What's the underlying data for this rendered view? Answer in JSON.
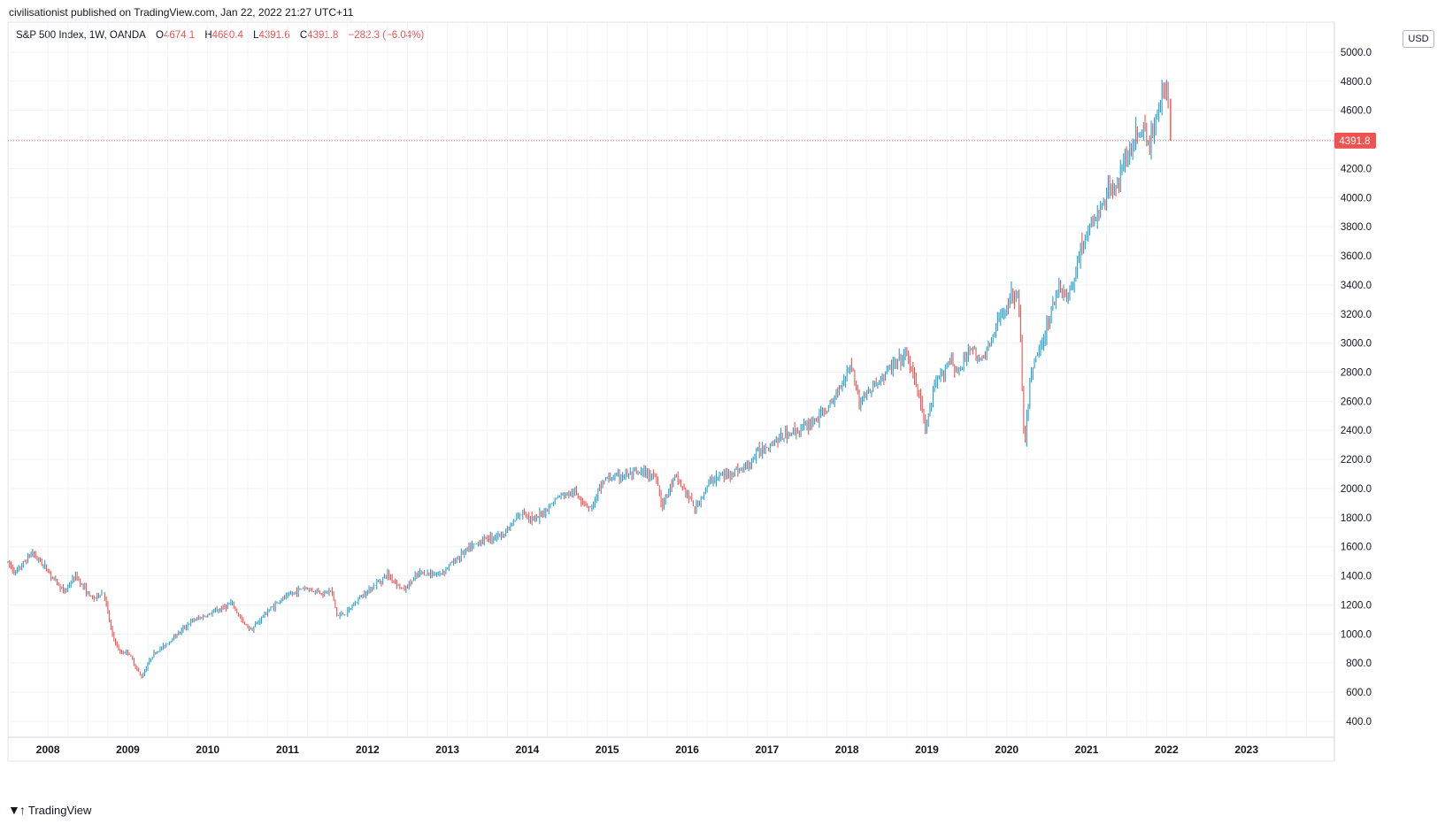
{
  "attribution": "civilisationist published on TradingView.com, Jan 22, 2022 21:27 UTC+11",
  "legend": {
    "symbol": "S&P 500 Index, 1W, OANDA",
    "open_label": "O",
    "open": "4674.1",
    "high_label": "H",
    "high": "4680.4",
    "low_label": "L",
    "low": "4391.6",
    "close_label": "C",
    "close": "4391.8",
    "change": "−282.3 (−6.04%)"
  },
  "currency": "USD",
  "last_price_label": "4391.8",
  "brand": "TradingView",
  "colors": {
    "up": "#26a69a",
    "down": "#ef5350",
    "line": "#26a0c8",
    "grid": "#f0f3fa",
    "price_line": "#ef5350"
  },
  "chart_data": {
    "type": "candlestick",
    "title": "S&P 500 Index, 1W, OANDA",
    "interval": "1W",
    "xlim": [
      2007.5,
      2024.1
    ],
    "ylim": [
      290,
      5170
    ],
    "y_ticks": [
      "400.0",
      "600.0",
      "800.0",
      "1000.0",
      "1200.0",
      "1400.0",
      "1600.0",
      "1800.0",
      "2000.0",
      "2200.0",
      "2400.0",
      "2600.0",
      "2800.0",
      "3000.0",
      "3200.0",
      "3400.0",
      "3600.0",
      "3800.0",
      "4000.0",
      "4200.0",
      "4600.0",
      "4800.0",
      "5000.0"
    ],
    "x_ticks": [
      "2008",
      "2009",
      "2010",
      "2011",
      "2012",
      "2013",
      "2014",
      "2015",
      "2016",
      "2017",
      "2018",
      "2019",
      "2020",
      "2021",
      "2022",
      "2023"
    ],
    "price_anchors": [
      [
        2007.5,
        1490
      ],
      [
        2007.6,
        1420
      ],
      [
        2007.8,
        1560
      ],
      [
        2007.95,
        1470
      ],
      [
        2008.2,
        1290
      ],
      [
        2008.35,
        1400
      ],
      [
        2008.55,
        1240
      ],
      [
        2008.7,
        1290
      ],
      [
        2008.8,
        1000
      ],
      [
        2008.9,
        870
      ],
      [
        2009.0,
        880
      ],
      [
        2009.17,
        700
      ],
      [
        2009.3,
        850
      ],
      [
        2009.5,
        940
      ],
      [
        2009.8,
        1090
      ],
      [
        2010.0,
        1130
      ],
      [
        2010.3,
        1210
      ],
      [
        2010.45,
        1070
      ],
      [
        2010.55,
        1030
      ],
      [
        2010.7,
        1130
      ],
      [
        2010.9,
        1230
      ],
      [
        2011.2,
        1320
      ],
      [
        2011.45,
        1280
      ],
      [
        2011.55,
        1300
      ],
      [
        2011.62,
        1120
      ],
      [
        2011.75,
        1150
      ],
      [
        2011.9,
        1250
      ],
      [
        2012.25,
        1410
      ],
      [
        2012.45,
        1300
      ],
      [
        2012.65,
        1420
      ],
      [
        2012.9,
        1410
      ],
      [
        2013.2,
        1560
      ],
      [
        2013.45,
        1650
      ],
      [
        2013.7,
        1690
      ],
      [
        2013.95,
        1840
      ],
      [
        2014.1,
        1780
      ],
      [
        2014.4,
        1950
      ],
      [
        2014.6,
        1970
      ],
      [
        2014.8,
        1860
      ],
      [
        2014.95,
        2060
      ],
      [
        2015.2,
        2090
      ],
      [
        2015.45,
        2110
      ],
      [
        2015.62,
        2080
      ],
      [
        2015.68,
        1880
      ],
      [
        2015.85,
        2080
      ],
      [
        2016.0,
        1960
      ],
      [
        2016.1,
        1860
      ],
      [
        2016.3,
        2060
      ],
      [
        2016.5,
        2100
      ],
      [
        2016.75,
        2150
      ],
      [
        2016.9,
        2260
      ],
      [
        2017.2,
        2360
      ],
      [
        2017.5,
        2430
      ],
      [
        2017.8,
        2570
      ],
      [
        2018.05,
        2870
      ],
      [
        2018.15,
        2600
      ],
      [
        2018.3,
        2680
      ],
      [
        2018.55,
        2830
      ],
      [
        2018.75,
        2920
      ],
      [
        2018.9,
        2650
      ],
      [
        2018.98,
        2400
      ],
      [
        2019.1,
        2700
      ],
      [
        2019.3,
        2900
      ],
      [
        2019.4,
        2780
      ],
      [
        2019.55,
        3000
      ],
      [
        2019.65,
        2860
      ],
      [
        2019.8,
        3000
      ],
      [
        2019.95,
        3220
      ],
      [
        2020.13,
        3380
      ],
      [
        2020.18,
        2950
      ],
      [
        2020.22,
        2240
      ],
      [
        2020.3,
        2800
      ],
      [
        2020.5,
        3100
      ],
      [
        2020.65,
        3400
      ],
      [
        2020.75,
        3300
      ],
      [
        2020.82,
        3400
      ],
      [
        2020.9,
        3600
      ],
      [
        2021.0,
        3750
      ],
      [
        2021.2,
        3950
      ],
      [
        2021.45,
        4200
      ],
      [
        2021.6,
        4400
      ],
      [
        2021.72,
        4500
      ],
      [
        2021.78,
        4330
      ],
      [
        2021.9,
        4650
      ],
      [
        2022.0,
        4760
      ],
      [
        2022.03,
        4650
      ],
      [
        2022.05,
        4392
      ]
    ],
    "last_bar": {
      "open": 4674.1,
      "high": 4680.4,
      "low": 4391.6,
      "close": 4391.8
    }
  }
}
